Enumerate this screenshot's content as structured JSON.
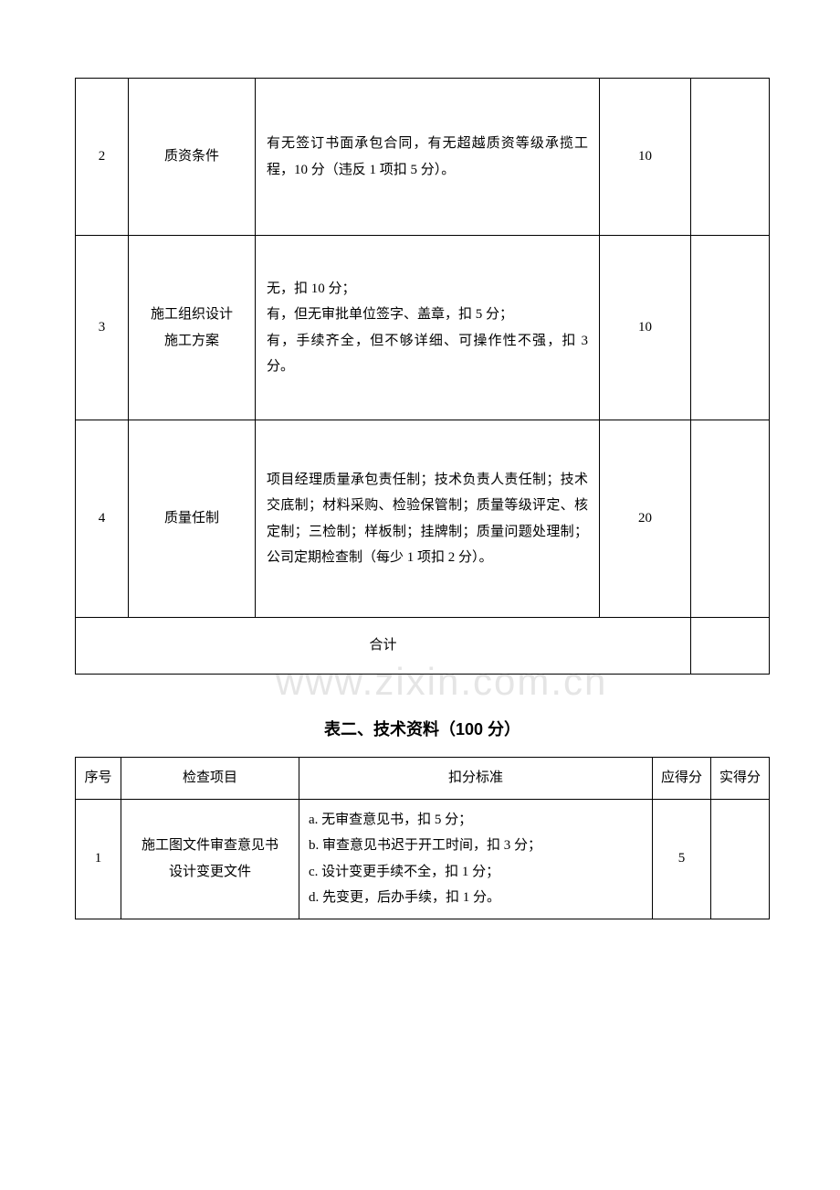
{
  "watermark": "www.zixin.com.cn",
  "table1": {
    "rows": [
      {
        "num": "2",
        "item": "质资条件",
        "criteria": "有无签订书面承包合同，有无超越质资等级承揽工程，10 分（违反 1 项扣 5 分）。",
        "score": "10",
        "actual": ""
      },
      {
        "num": "3",
        "item": "施工组织设计\n施工方案",
        "criteria": "无，扣 10 分；\n有，但无审批单位签字、盖章，扣 5 分；\n有，手续齐全，但不够详细、可操作性不强，扣 3 分。",
        "score": "10",
        "actual": ""
      },
      {
        "num": "4",
        "item": "质量任制",
        "criteria": "项目经理质量承包责任制；技术负责人责任制；技术交底制；材料采购、检验保管制；质量等级评定、核定制；三检制；样板制；挂牌制；质量问题处理制；公司定期检查制（每少 1 项扣 2 分）。",
        "score": "20",
        "actual": ""
      }
    ],
    "totalLabel": "合计",
    "totalActual": ""
  },
  "title2": "表二、技术资料（100 分）",
  "table2": {
    "headers": {
      "num": "序号",
      "item": "检查项目",
      "criteria": "扣分标准",
      "score": "应得分",
      "actual": "实得分"
    },
    "rows": [
      {
        "num": "1",
        "item": "施工图文件审查意见书\n设计变更文件",
        "criteria": "a.  无审查意见书，扣 5 分；\nb.  审查意见书迟于开工时间，扣 3 分；\nc.  设计变更手续不全，扣 1 分；\nd.  先变更，后办手续，扣 1 分。",
        "score": "5",
        "actual": ""
      }
    ]
  }
}
